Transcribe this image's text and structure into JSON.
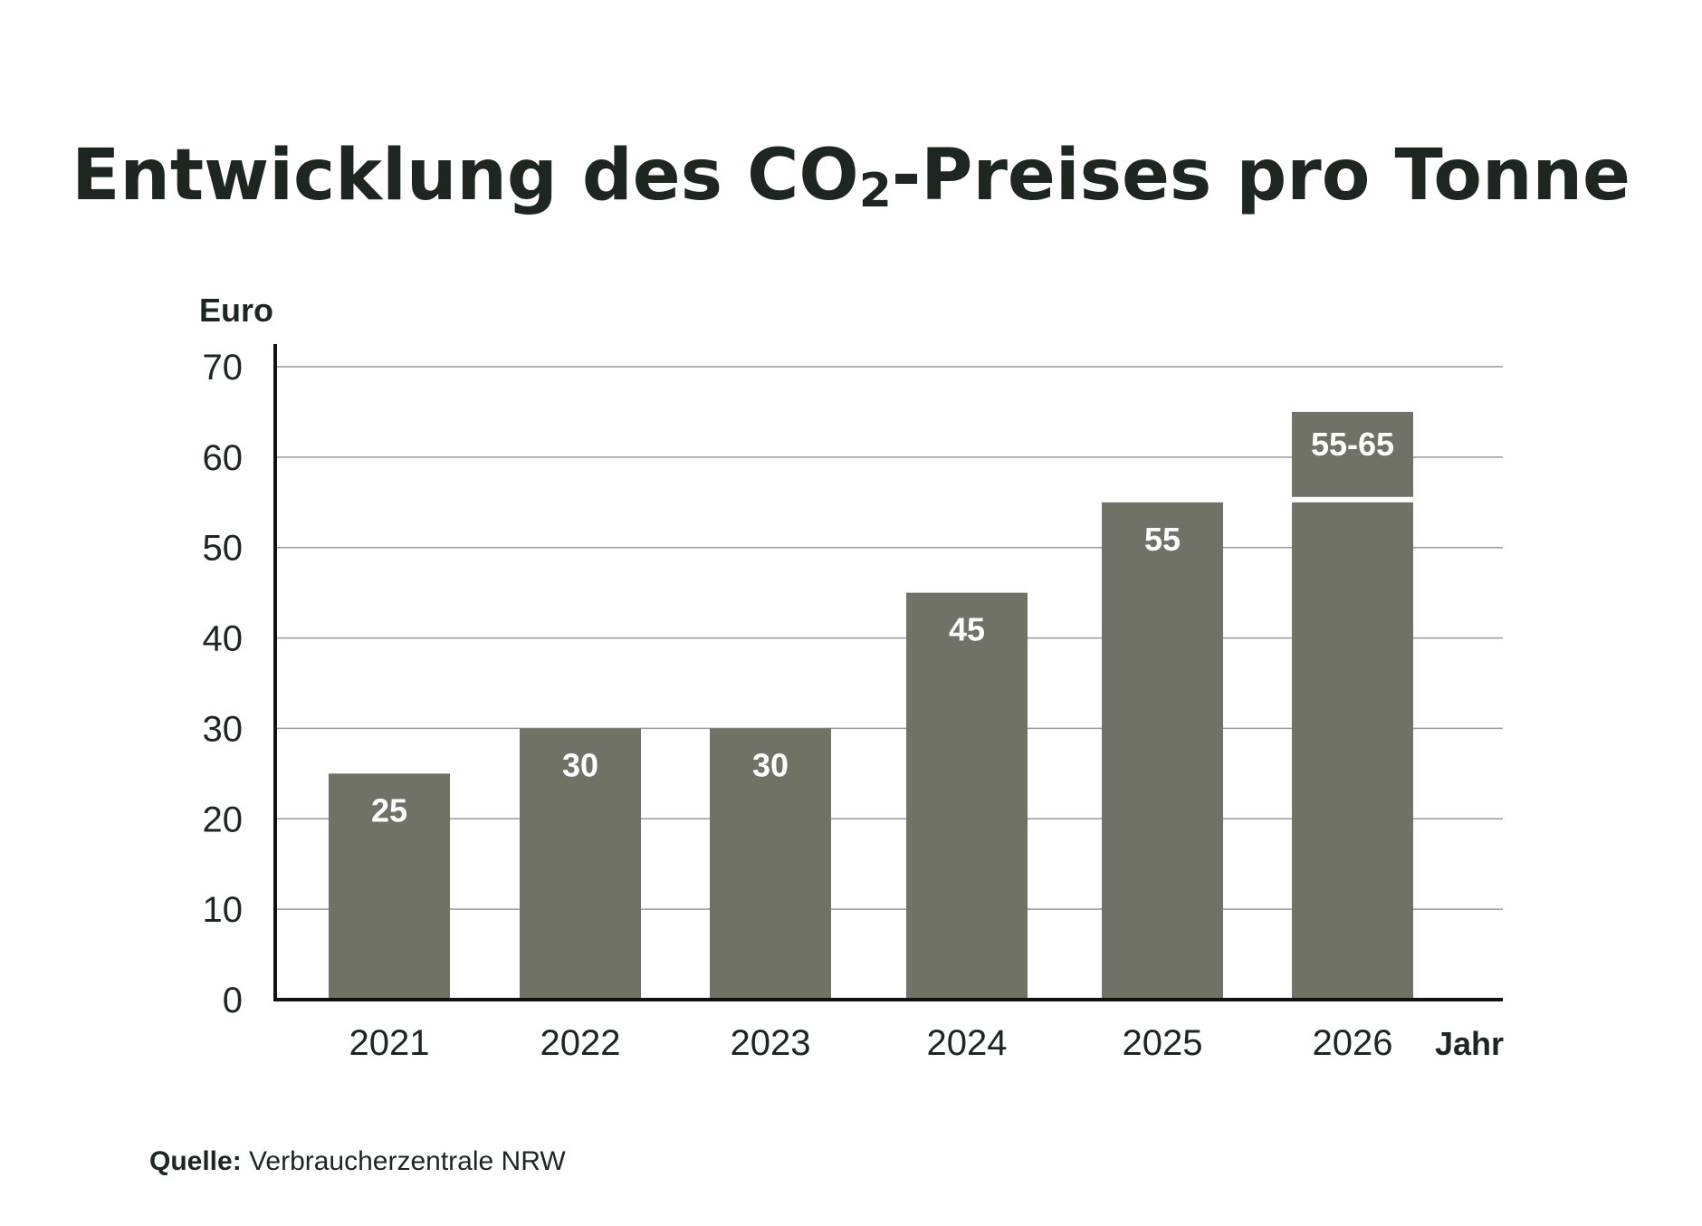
{
  "chart_data": {
    "type": "bar",
    "title_parts": [
      "Entwicklung des CO",
      "2",
      "-Preises pro Tonne"
    ],
    "ylabel": "Euro",
    "xlabel": "Jahr",
    "categories": [
      "2021",
      "2022",
      "2023",
      "2024",
      "2025",
      "2026"
    ],
    "values": [
      25,
      30,
      30,
      45,
      55,
      55
    ],
    "range_extension": {
      "category": "2026",
      "from": 55,
      "to": 65,
      "label": "55-65"
    },
    "data_labels": [
      "25",
      "30",
      "30",
      "45",
      "55",
      ""
    ],
    "yticks": [
      0,
      10,
      20,
      30,
      40,
      50,
      60,
      70
    ],
    "ylim": [
      0,
      70
    ],
    "grid": true,
    "legend": "none",
    "bar_color": "#6f7265",
    "text_color": "#1d2621"
  },
  "source": {
    "label": "Quelle:",
    "text": " Verbraucherzentrale NRW"
  }
}
